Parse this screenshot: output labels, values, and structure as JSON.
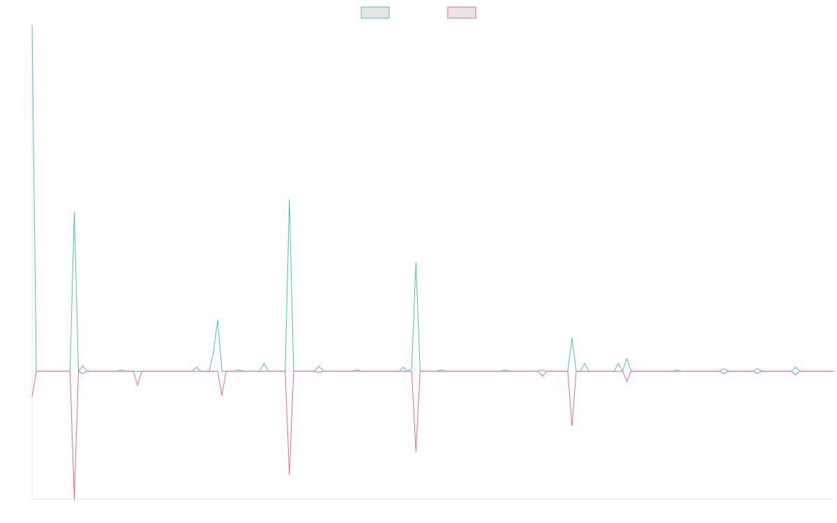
{
  "chart_data": {
    "type": "line",
    "title": "",
    "xlabel": "",
    "ylabel": "",
    "grid": false,
    "legend": {
      "position": "top-center",
      "show_labels": false
    },
    "xlim": [
      0,
      190
    ],
    "ylim": [
      -100,
      270
    ],
    "x": [
      0,
      1,
      2,
      3,
      4,
      5,
      6,
      7,
      8,
      9,
      10,
      11,
      12,
      13,
      14,
      15,
      16,
      17,
      18,
      19,
      20,
      21,
      22,
      23,
      24,
      25,
      26,
      27,
      28,
      29,
      30,
      31,
      32,
      33,
      34,
      35,
      36,
      37,
      38,
      39,
      40,
      41,
      42,
      43,
      44,
      45,
      46,
      47,
      48,
      49,
      50,
      51,
      52,
      53,
      54,
      55,
      56,
      57,
      58,
      59,
      60,
      61,
      62,
      63,
      64,
      65,
      66,
      67,
      68,
      69,
      70,
      71,
      72,
      73,
      74,
      75,
      76,
      77,
      78,
      79,
      80,
      81,
      82,
      83,
      84,
      85,
      86,
      87,
      88,
      89,
      90,
      91,
      92,
      93,
      94,
      95,
      96,
      97,
      98,
      99,
      100,
      101,
      102,
      103,
      104,
      105,
      106,
      107,
      108,
      109,
      110,
      111,
      112,
      113,
      114,
      115,
      116,
      117,
      118,
      119,
      120,
      121,
      122,
      123,
      124,
      125,
      126,
      127,
      128,
      129,
      130,
      131,
      132,
      133,
      134,
      135,
      136,
      137,
      138,
      139,
      140,
      141,
      142,
      143,
      144,
      145,
      146,
      147,
      148,
      149,
      150,
      151,
      152,
      153,
      154,
      155,
      156,
      157,
      158,
      159,
      160,
      161,
      162,
      163,
      164,
      165,
      166,
      167,
      168,
      169,
      170,
      171,
      172,
      173,
      174,
      175,
      176,
      177,
      178,
      179,
      180,
      181,
      182,
      183,
      184,
      185,
      186,
      187,
      188,
      189,
      190
    ],
    "series": [
      {
        "color": "#4bc0c0",
        "values": [
          270,
          0,
          0,
          0,
          0,
          0,
          0,
          0,
          0,
          0,
          124,
          0,
          4,
          0,
          0,
          0,
          0,
          0,
          0,
          0,
          0,
          1,
          0,
          0,
          0,
          0,
          0,
          0,
          0,
          0,
          0,
          0,
          0,
          0,
          0,
          0,
          0,
          0,
          0,
          3,
          0,
          0,
          0,
          15,
          40,
          0,
          0,
          0,
          0,
          1,
          0,
          0,
          0,
          0,
          0,
          6,
          0,
          0,
          0,
          0,
          0,
          134,
          0,
          0,
          0,
          0,
          0,
          0,
          4,
          0,
          0,
          0,
          0,
          0,
          0,
          0,
          0,
          1,
          0,
          0,
          0,
          0,
          0,
          0,
          0,
          0,
          0,
          0,
          3,
          0,
          2,
          85,
          0,
          0,
          0,
          0,
          0,
          1,
          0,
          0,
          0,
          0,
          0,
          0,
          0,
          0,
          0,
          0,
          0,
          0,
          0,
          0,
          1,
          0,
          0,
          0,
          0,
          0,
          0,
          0,
          0,
          1,
          0,
          0,
          0,
          0,
          0,
          0,
          26,
          0,
          0,
          6,
          0,
          0,
          0,
          0,
          0,
          0,
          0,
          6,
          0,
          10,
          0,
          0,
          0,
          0,
          0,
          0,
          0,
          0,
          0,
          0,
          0,
          1,
          0,
          0,
          0,
          0,
          0,
          0,
          0,
          0,
          0,
          0,
          2,
          0,
          0,
          0,
          0,
          0,
          0,
          0,
          2,
          0,
          0,
          0,
          0,
          0,
          0,
          0,
          0,
          3,
          0,
          0,
          0,
          0,
          0,
          0,
          0,
          0,
          0
        ]
      },
      {
        "color": "#ff6384",
        "values": [
          -20,
          0,
          0,
          0,
          0,
          0,
          0,
          0,
          0,
          0,
          -100,
          0,
          -2,
          0,
          0,
          0,
          0,
          0,
          0,
          0,
          0,
          0,
          0,
          0,
          0,
          -11,
          0,
          0,
          0,
          0,
          0,
          0,
          0,
          0,
          0,
          0,
          0,
          0,
          0,
          0,
          0,
          0,
          0,
          0,
          0,
          -19,
          0,
          0,
          0,
          0,
          0,
          0,
          0,
          0,
          0,
          0,
          0,
          0,
          0,
          0,
          0,
          -81,
          0,
          0,
          0,
          0,
          0,
          0,
          -1,
          0,
          0,
          0,
          0,
          0,
          0,
          0,
          0,
          0,
          0,
          0,
          0,
          0,
          0,
          0,
          0,
          0,
          0,
          0,
          0,
          0,
          0,
          -63,
          0,
          0,
          0,
          0,
          0,
          0,
          0,
          0,
          0,
          0,
          0,
          0,
          0,
          0,
          0,
          0,
          0,
          0,
          0,
          0,
          0,
          0,
          0,
          0,
          0,
          0,
          0,
          0,
          0,
          -4,
          0,
          0,
          0,
          0,
          0,
          0,
          -43,
          0,
          0,
          0,
          0,
          0,
          0,
          0,
          0,
          0,
          0,
          0,
          0,
          -8,
          0,
          0,
          0,
          0,
          0,
          0,
          0,
          0,
          0,
          0,
          0,
          0,
          0,
          0,
          0,
          0,
          0,
          0,
          0,
          0,
          0,
          0,
          -2,
          0,
          0,
          0,
          0,
          0,
          0,
          0,
          -2,
          0,
          0,
          0,
          0,
          0,
          0,
          0,
          0,
          -3,
          0,
          0,
          0,
          0,
          0,
          0,
          0,
          0,
          0
        ]
      }
    ]
  }
}
